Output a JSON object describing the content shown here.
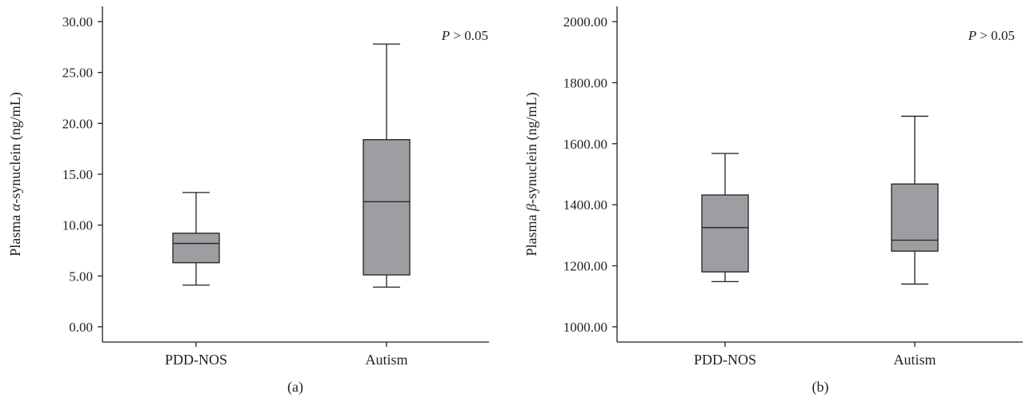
{
  "colors": {
    "box_fill": "#9d9ea1",
    "stroke": "#231f20",
    "background": "#ffffff"
  },
  "chart_data": [
    {
      "type": "box",
      "title": "",
      "caption": "(a)",
      "xlabel": "",
      "ylabel_prefix": "Plasma ",
      "ylabel_symbol": "α",
      "ylabel_suffix": "-synuclein (ng/mL)",
      "ylim": [
        -1.5,
        31.5
      ],
      "yticks": [
        0,
        5,
        10,
        15,
        20,
        25,
        30
      ],
      "ytick_labels": [
        "0.00",
        "5.00",
        "10.00",
        "15.00",
        "20.00",
        "25.00",
        "30.00"
      ],
      "categories": [
        "PDD-NOS",
        "Autism"
      ],
      "boxes": [
        {
          "category": "PDD-NOS",
          "min": 4.1,
          "q1": 6.3,
          "median": 8.2,
          "q3": 9.2,
          "max": 13.2
        },
        {
          "category": "Autism",
          "min": 3.9,
          "q1": 5.1,
          "median": 12.3,
          "q3": 18.4,
          "max": 27.8
        }
      ],
      "annotation": {
        "p_symbol": "P",
        "text": " > 0.05"
      },
      "grid": false,
      "legend": "none"
    },
    {
      "type": "box",
      "title": "",
      "caption": "(b)",
      "xlabel": "",
      "ylabel_prefix": "Plasma ",
      "ylabel_symbol": "β",
      "ylabel_suffix": "-synuclein (ng/mL)",
      "ylim": [
        950,
        2050
      ],
      "yticks": [
        1000,
        1200,
        1400,
        1600,
        1800,
        2000
      ],
      "ytick_labels": [
        "1000.00",
        "1200.00",
        "1400.00",
        "1600.00",
        "1800.00",
        "2000.00"
      ],
      "categories": [
        "PDD-NOS",
        "Autism"
      ],
      "boxes": [
        {
          "category": "PDD-NOS",
          "min": 1148,
          "q1": 1180,
          "median": 1325,
          "q3": 1432,
          "max": 1568
        },
        {
          "category": "Autism",
          "min": 1140,
          "q1": 1248,
          "median": 1284,
          "q3": 1468,
          "max": 1690
        }
      ],
      "annotation": {
        "p_symbol": "P",
        "text": " > 0.05"
      },
      "grid": false,
      "legend": "none"
    }
  ]
}
